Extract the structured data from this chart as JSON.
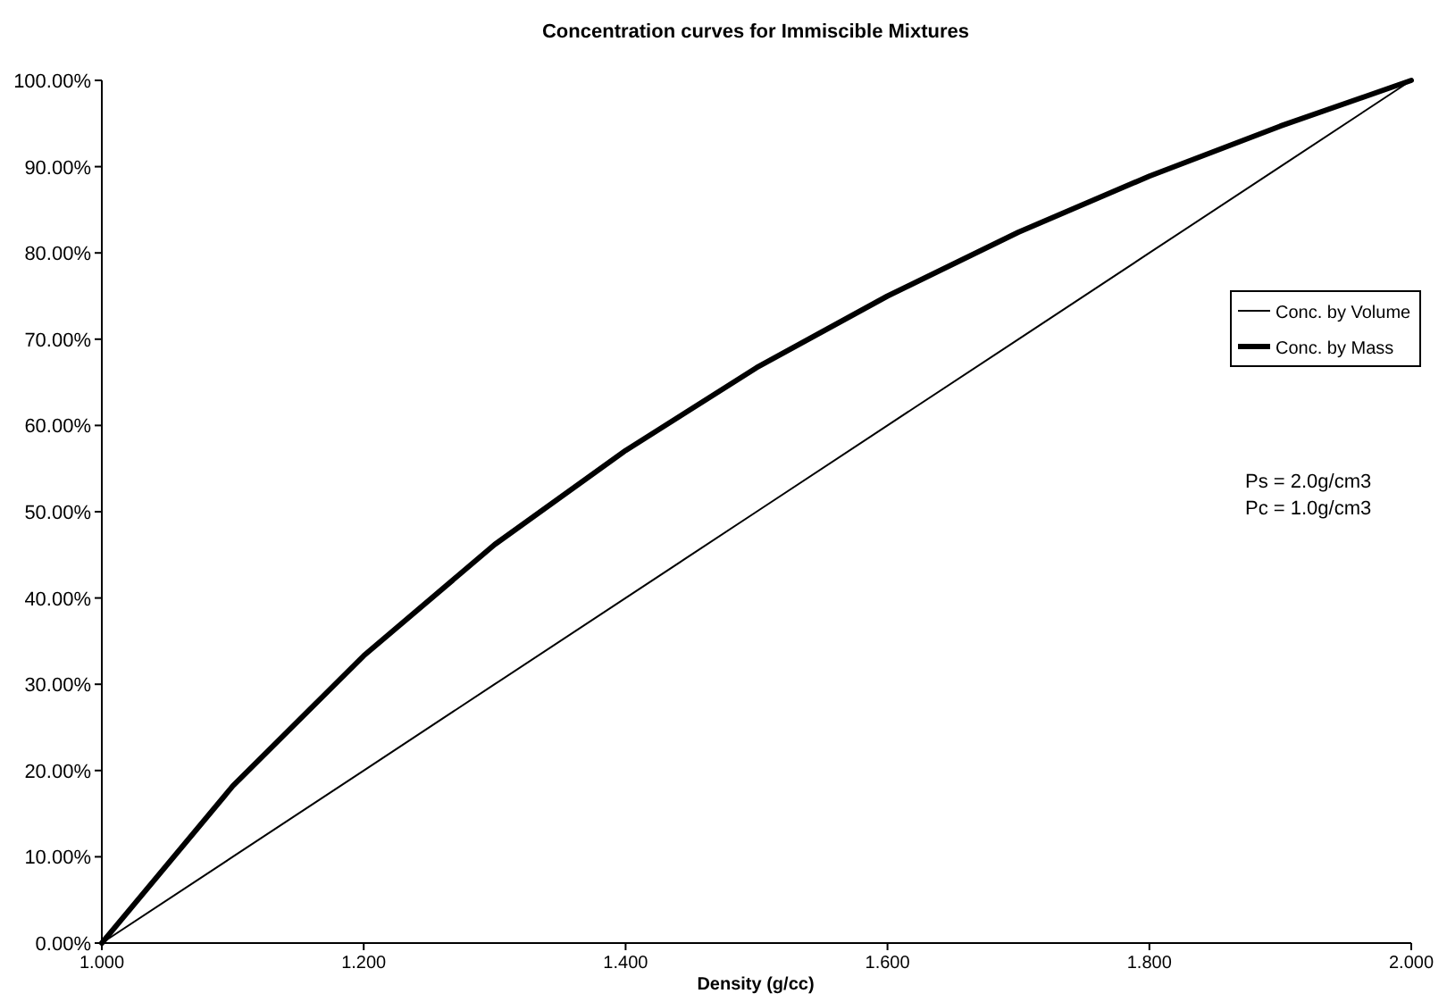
{
  "chart_data": {
    "type": "line",
    "title": "Concentration curves for Immiscible Mixtures",
    "xlabel": "Density  (g/cc)",
    "x": [
      1.0,
      1.1,
      1.2,
      1.3,
      1.4,
      1.5,
      1.6,
      1.7,
      1.8,
      1.9,
      2.0
    ],
    "series": [
      {
        "name": "Conc. by Volume",
        "color": "#000000",
        "values": [
          0,
          10,
          20,
          30,
          40,
          50,
          60,
          70,
          80,
          90,
          100
        ]
      },
      {
        "name": "Conc. by Mass",
        "color": "#000000",
        "values": [
          0,
          18.2,
          33.3,
          46.2,
          57.1,
          66.7,
          75,
          82.4,
          88.9,
          94.7,
          100
        ]
      }
    ],
    "xlim": [
      1.0,
      2.0
    ],
    "xticks": [
      {
        "value": 1.0,
        "label": "1.000"
      },
      {
        "value": 1.2,
        "label": "1.200"
      },
      {
        "value": 1.4,
        "label": "1.400"
      },
      {
        "value": 1.6,
        "label": "1.600"
      },
      {
        "value": 1.8,
        "label": "1.800"
      },
      {
        "value": 2.0,
        "label": "2.000"
      }
    ],
    "ylim": [
      0,
      100
    ],
    "yticks": [
      {
        "value": 0,
        "label": "0.00%"
      },
      {
        "value": 10,
        "label": "10.00%"
      },
      {
        "value": 20,
        "label": "20.00%"
      },
      {
        "value": 30,
        "label": "30.00%"
      },
      {
        "value": 40,
        "label": "40.00%"
      },
      {
        "value": 50,
        "label": "50.00%"
      },
      {
        "value": 60,
        "label": "60.00%"
      },
      {
        "value": 70,
        "label": "70.00%"
      },
      {
        "value": 80,
        "label": "80.00%"
      },
      {
        "value": 90,
        "label": "90.00%"
      },
      {
        "value": 100,
        "label": "100.00%"
      }
    ],
    "grid": false,
    "legend": "right",
    "marker": "none",
    "line_style": "solid",
    "annotations": [
      "Ps = 2.0g/cm3",
      "Pc = 1.0g/cm3"
    ]
  }
}
